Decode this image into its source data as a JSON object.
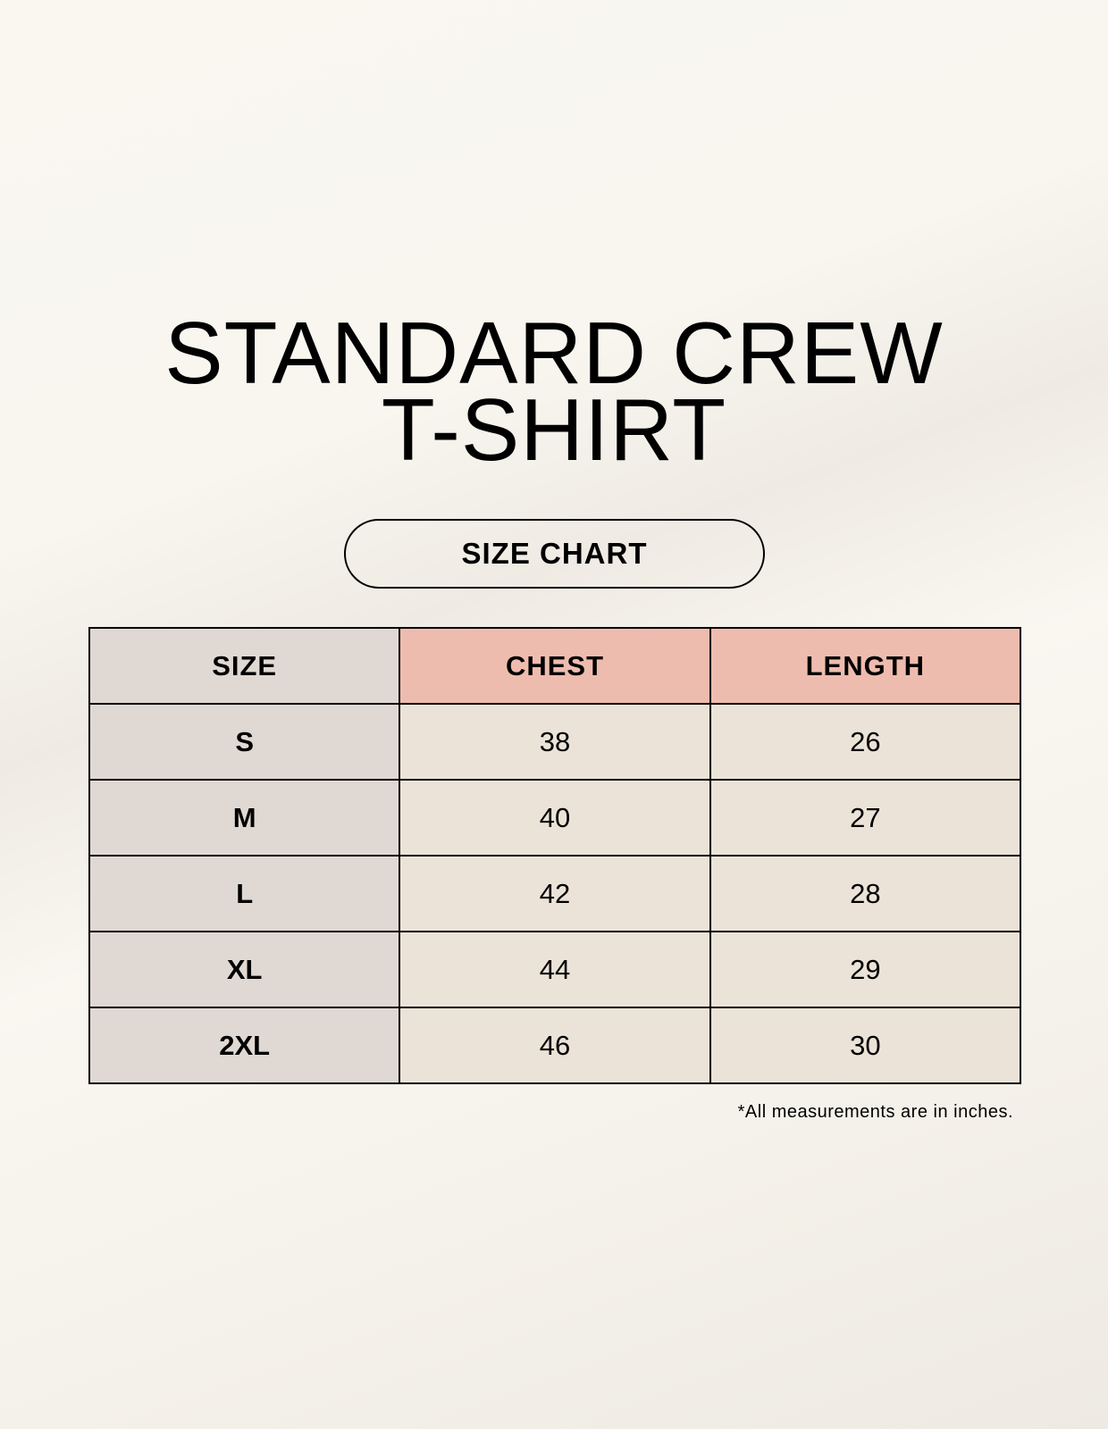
{
  "title": {
    "line1": "STANDARD CREW",
    "line2": "T-SHIRT"
  },
  "subtitle": "SIZE CHART",
  "table": {
    "headers": [
      "SIZE",
      "CHEST",
      "LENGTH"
    ],
    "rows": [
      [
        "S",
        "38",
        "26"
      ],
      [
        "M",
        "40",
        "27"
      ],
      [
        "L",
        "42",
        "28"
      ],
      [
        "XL",
        "44",
        "29"
      ],
      [
        "2XL",
        "46",
        "30"
      ]
    ]
  },
  "footnote": "*All measurements are in inches.",
  "colors": {
    "size_column": "#e0d9d3",
    "header_accent": "#eebcae",
    "cell": "#ebe3d8",
    "background": "#f9f7f0"
  }
}
